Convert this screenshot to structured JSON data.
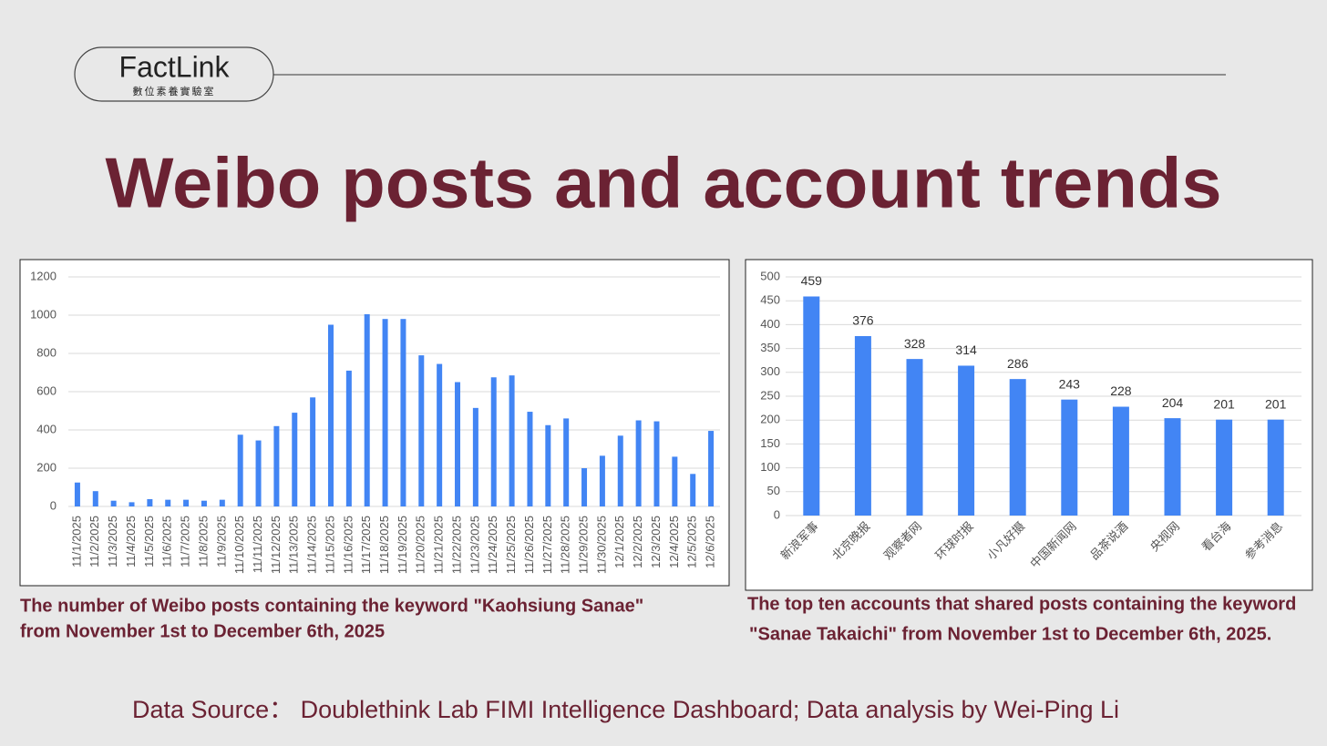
{
  "logo": {
    "name": "FactLink",
    "subtitle": "數位素養實驗室"
  },
  "title": "Weibo posts and account trends",
  "source": "Data Source： Doublethink Lab FIMI Intelligence Dashboard; Data analysis by Wei-Ping Li",
  "chart_data": [
    {
      "type": "bar",
      "caption": [
        "The number of Weibo posts containing the keyword \"Kaohsiung Sanae\"",
        "from November 1st to December 6th, 2025"
      ],
      "categories": [
        "11/1/2025",
        "11/2/2025",
        "11/3/2025",
        "11/4/2025",
        "11/5/2025",
        "11/6/2025",
        "11/7/2025",
        "11/8/2025",
        "11/9/2025",
        "11/10/2025",
        "11/11/2025",
        "11/12/2025",
        "11/13/2025",
        "11/14/2025",
        "11/15/2025",
        "11/16/2025",
        "11/17/2025",
        "11/18/2025",
        "11/19/2025",
        "11/20/2025",
        "11/21/2025",
        "11/22/2025",
        "11/23/2025",
        "11/24/2025",
        "11/25/2025",
        "11/26/2025",
        "11/27/2025",
        "11/28/2025",
        "11/29/2025",
        "11/30/2025",
        "12/1/2025",
        "12/2/2025",
        "12/3/2025",
        "12/4/2025",
        "12/5/2025",
        "12/6/2025"
      ],
      "values": [
        125,
        80,
        30,
        22,
        38,
        35,
        35,
        30,
        35,
        375,
        345,
        420,
        490,
        570,
        950,
        710,
        1005,
        980,
        980,
        790,
        745,
        650,
        515,
        675,
        685,
        495,
        425,
        460,
        200,
        265,
        370,
        450,
        445,
        260,
        170,
        395
      ],
      "color": "#4285f4",
      "ylim": [
        0,
        1200
      ],
      "yticks": [
        0,
        200,
        400,
        600,
        800,
        1000,
        1200
      ],
      "grid": true,
      "data_labels": false
    },
    {
      "type": "bar",
      "caption": [
        "The top ten accounts that shared posts containing the keyword",
        "\"Sanae Takaichi\" from November 1st to December 6th, 2025."
      ],
      "categories": [
        "新浪军事",
        "北京晚报",
        "观察者网",
        "环球时报",
        "小凡好摄",
        "中国新闻网",
        "品茶说酒",
        "央视网",
        "看台海",
        "参考消息"
      ],
      "values": [
        459,
        376,
        328,
        314,
        286,
        243,
        228,
        204,
        201,
        201
      ],
      "color": "#4285f4",
      "ylim": [
        0,
        500
      ],
      "yticks": [
        0,
        50,
        100,
        150,
        200,
        250,
        300,
        350,
        400,
        450,
        500
      ],
      "grid": true,
      "data_labels": true
    }
  ]
}
